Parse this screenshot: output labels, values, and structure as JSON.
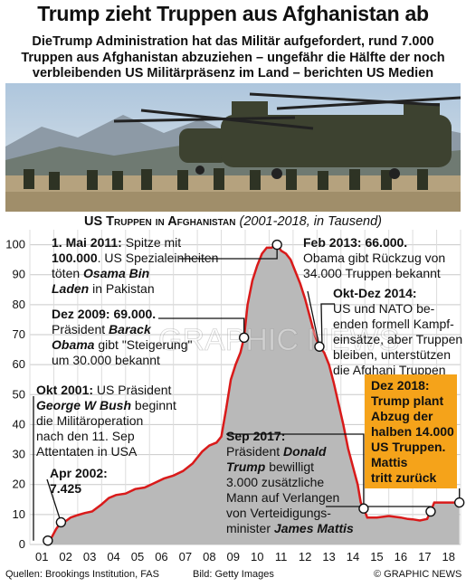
{
  "title": "Trump zieht Truppen aus Afghanistan ab",
  "subtitle": "DieTrump Administration hat das Militär aufgefordert, rund 7.000 Truppen aus Afghanistan abzuziehen – ungefähr die Hälfte der noch verbleibenden US Militärpräsenz im Land – berichten US Medien",
  "chart_title": {
    "main": "US Truppen in Afghanistan",
    "range": "(2001-2018, in Tausend)"
  },
  "footer": {
    "sources": "Quellen: Brookings Institution, FAS",
    "photo": "Bild: Getty Images",
    "copyright": "© GRAPHIC NEWS"
  },
  "watermark": "GRAPHIC NEWS",
  "colors": {
    "line": "#d91a1a",
    "area": "#b9b9b9",
    "highlight_box": "#f5a31a",
    "highlight_text": "#ffffff"
  },
  "annotations": {
    "a2011": {
      "l1b": "1. Mai 2011:",
      "l1": " Spitze mit",
      "l2b": "100.000",
      "l2": ". US Spezialeinheiten",
      "l3": "töten ",
      "l3b": "Osama Bin",
      "l4b": "Laden",
      "l4": " in Pakistan"
    },
    "a2009": {
      "l1b": "Dez 2009: 69.000.",
      "l2": "Präsident ",
      "l2b": "Barack",
      "l3b": "Obama",
      "l3": " gibt \"Steigerung\"",
      "l4": "um 30.000 bekannt"
    },
    "a2001": {
      "l1b": "Okt 2001:",
      "l1": " US Präsident",
      "l2b": "George W Bush",
      "l2": " beginnt",
      "l3": "die Militäroperation",
      "l4": "nach den 11. Sep",
      "l5": "Attentaten in USA"
    },
    "a2002": {
      "l1b": "Apr 2002:",
      "l2b": "7.425"
    },
    "a2013": {
      "l1b": "Feb 2013: 66.000.",
      "l2": "Obama gibt Rückzug von",
      "l3": "34.000 Truppen bekannt"
    },
    "a2014": {
      "l1b": "Okt-Dez 2014:",
      "l2": "US und NATO be-",
      "l3": "enden formell Kampf-",
      "l4": "einsätze, aber Truppen",
      "l5": "bleiben, unterstützen",
      "l6": "die Afghani Truppen"
    },
    "a2017": {
      "l1b": "Sep 2017:",
      "l2": "Präsident ",
      "l2b": "Donald",
      "l3b": "Trump",
      "l3": " bewilligt",
      "l4": "3.000 zusätzliche",
      "l5": "Mann auf Verlangen",
      "l6": "von Verteidigungs-",
      "l7": "minister ",
      "l7b": "James Mattis"
    },
    "a2018": {
      "l1": "Dez 2018:",
      "l2": "Trump plant",
      "l3": "Abzug der",
      "l4": "halben 14.000",
      "l5": "US Truppen.",
      "l6": "Mattis",
      "l7": "tritt zurück"
    }
  },
  "chart_data": {
    "type": "area",
    "title": "US Truppen in Afghanistan",
    "subtitle": "(2001-2018, in Tausend)",
    "xlabel": "",
    "ylabel": "",
    "x_ticks": [
      "01",
      "02",
      "03",
      "04",
      "05",
      "06",
      "07",
      "08",
      "09",
      "10",
      "11",
      "12",
      "13",
      "14",
      "15",
      "16",
      "17",
      "18"
    ],
    "y_ticks": [
      0,
      10,
      20,
      30,
      40,
      50,
      60,
      70,
      80,
      90,
      100
    ],
    "ylim": [
      0,
      105
    ],
    "xlim": [
      2001,
      2019
    ],
    "grid": true,
    "series": [
      {
        "x": [
          2001.75,
          2001.92,
          2002.1,
          2002.3,
          2002.5,
          2002.7,
          2003.0,
          2003.3,
          2003.6,
          2004.0,
          2004.3,
          2004.6,
          2005.0,
          2005.4,
          2005.8,
          2006.2,
          2006.6,
          2007.0,
          2007.4,
          2007.8,
          2008.2,
          2008.5,
          2008.8,
          2009.0,
          2009.2,
          2009.4,
          2009.6,
          2009.8,
          2009.95,
          2010.1,
          2010.3,
          2010.5,
          2010.7,
          2010.9,
          2011.1,
          2011.33,
          2011.5,
          2011.7,
          2011.9,
          2012.1,
          2012.3,
          2012.5,
          2012.7,
          2012.9,
          2013.1,
          2013.3,
          2013.5,
          2013.7,
          2013.9,
          2014.1,
          2014.3,
          2014.5,
          2014.7,
          2014.83,
          2014.95,
          2015.1,
          2015.5,
          2016.0,
          2016.5,
          2016.8,
          2017.0,
          2017.3,
          2017.6,
          2017.75,
          2017.9,
          2018.1,
          2018.5,
          2018.95
        ],
        "values": [
          1.3,
          2.5,
          5.2,
          7.4,
          7.8,
          9,
          9.8,
          10.5,
          11,
          13.4,
          15.5,
          16.5,
          17,
          18.5,
          19,
          20.5,
          22,
          23,
          24.5,
          27,
          31,
          33,
          34,
          36,
          45,
          55,
          60,
          64,
          69,
          80,
          88,
          93,
          97,
          99,
          99,
          100,
          98,
          97,
          95,
          91,
          87,
          82,
          76,
          70,
          66,
          64,
          60,
          54,
          47,
          40,
          32,
          26,
          20,
          14,
          12,
          9,
          9,
          9.5,
          9,
          8.5,
          8.4,
          8,
          8.5,
          11,
          14,
          14,
          14,
          14
        ]
      }
    ]
  }
}
